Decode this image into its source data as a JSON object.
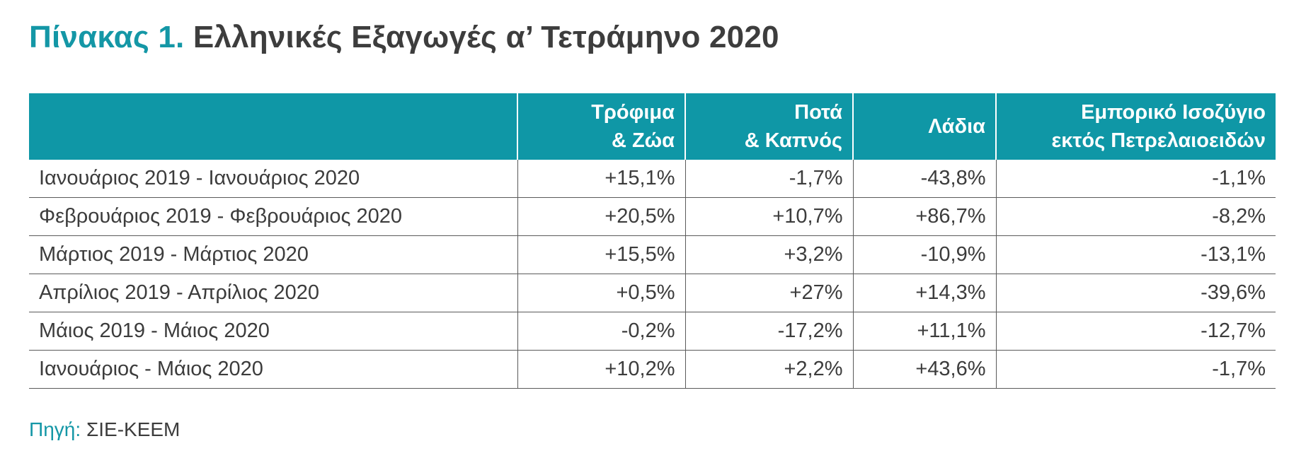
{
  "title": {
    "lead": "Πίνακας 1.",
    "rest": "Ελληνικές Εξαγωγές α’ Τετράμηνο 2020"
  },
  "colors": {
    "accent": "#1497a6",
    "header_bg": "#0f97a6",
    "text": "#3c3c3c"
  },
  "chart_data": {
    "type": "table",
    "columns": [
      {
        "line1": "",
        "line2": ""
      },
      {
        "line1": "Τρόφιμα",
        "line2": "& Ζώα"
      },
      {
        "line1": "Ποτά",
        "line2": "& Καπνός"
      },
      {
        "line1": "Λάδια",
        "line2": ""
      },
      {
        "line1": "Εμπορικό Ισοζύγιο",
        "line2": "εκτός Πετρελαιοειδών"
      }
    ],
    "rows": [
      {
        "period": "Ιανουάριος 2019 - Ιανουάριος 2020",
        "values": [
          "+15,1%",
          "-1,7%",
          "-43,8%",
          "-1,1%"
        ]
      },
      {
        "period": "Φεβρουάριος 2019 - Φεβρουάριος 2020",
        "values": [
          "+20,5%",
          "+10,7%",
          "+86,7%",
          "-8,2%"
        ]
      },
      {
        "period": "Μάρτιος 2019 - Μάρτιος 2020",
        "values": [
          "+15,5%",
          "+3,2%",
          "-10,9%",
          "-13,1%"
        ]
      },
      {
        "period": "Απρίλιος 2019 - Απρίλιος 2020",
        "values": [
          "+0,5%",
          "+27%",
          "+14,3%",
          "-39,6%"
        ]
      },
      {
        "period": "Μάιος 2019 - Μάιος 2020",
        "values": [
          "-0,2%",
          "-17,2%",
          "+11,1%",
          "-12,7%"
        ]
      },
      {
        "period": "Ιανουάριος - Μάιος 2020",
        "values": [
          "+10,2%",
          "+2,2%",
          "+43,6%",
          "-1,7%"
        ]
      }
    ]
  },
  "source": {
    "label": "Πηγή:",
    "value": "ΣΙΕ-ΚΕΕΜ"
  }
}
